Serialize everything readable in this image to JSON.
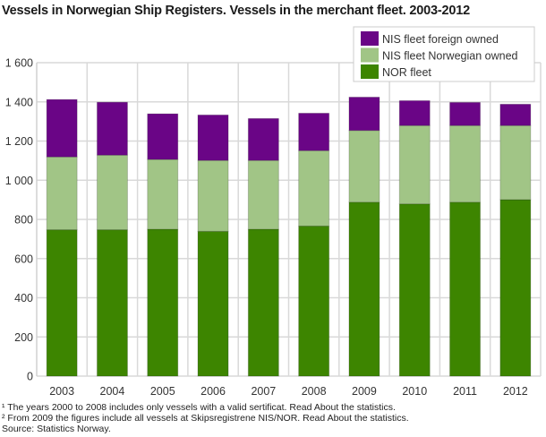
{
  "chart_data": {
    "type": "bar",
    "stacked": true,
    "title": "Vessels in Norwegian Ship Registers. Vessels in the merchant fleet. 2003-2012",
    "xlabel": "",
    "ylabel": "",
    "ylim": [
      0,
      1600
    ],
    "yticks": [
      0,
      200,
      400,
      600,
      800,
      1000,
      1200,
      1400,
      1600
    ],
    "ytick_labels": [
      "0",
      "200",
      "400",
      "600",
      "800",
      "1 000",
      "1 200",
      "1 400",
      "1 600"
    ],
    "grid": true,
    "legend_placement": "top-right",
    "categories": [
      "2003",
      "2004",
      "2005",
      "2006",
      "2007",
      "2008",
      "2009",
      "2010",
      "2011",
      "2012"
    ],
    "series": [
      {
        "name": "NOR fleet",
        "color": "#3d8500",
        "values": [
          747,
          747,
          750,
          739,
          750,
          766,
          888,
          879,
          888,
          901
        ]
      },
      {
        "name": "NIS fleet Norwegian owned",
        "color": "#a1c586",
        "values": [
          372,
          381,
          356,
          362,
          351,
          385,
          366,
          400,
          391,
          378
        ]
      },
      {
        "name": "NIS fleet foreign owned",
        "color": "#6a0586",
        "values": [
          293,
          270,
          233,
          232,
          214,
          191,
          170,
          127,
          118,
          109
        ]
      }
    ]
  },
  "footnotes": [
    "¹ The years 2000 to 2008 includes only vessels with a valid sertificat. Read About the statistics.",
    "² From 2009 the figures include all vessels at Skipsregistrene NIS/NOR. Read About the statistics.",
    "Source: Statistics Norway."
  ]
}
